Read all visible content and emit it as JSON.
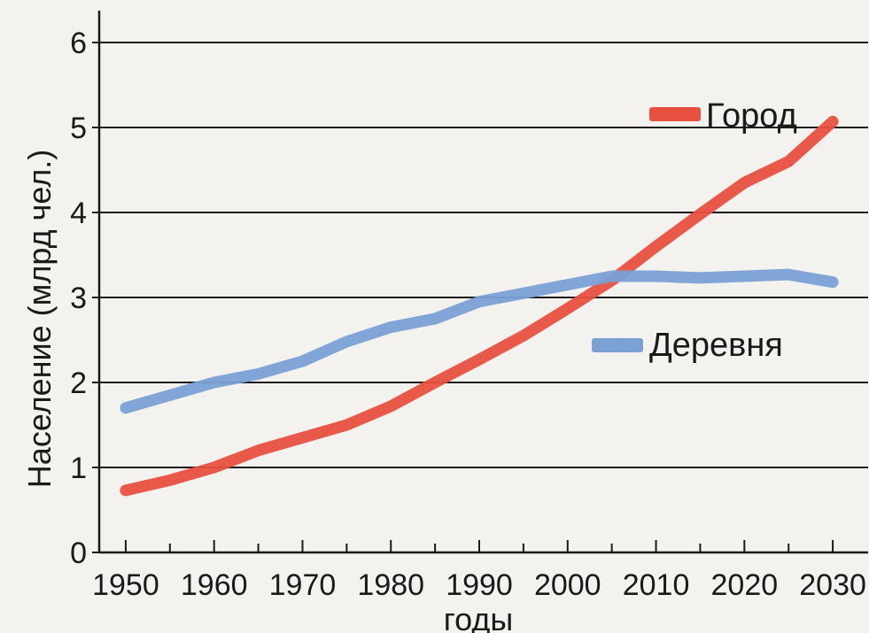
{
  "chart_data": {
    "type": "line",
    "title": "",
    "xlabel": "годы",
    "ylabel": "Население (млрд чел.)",
    "xlim": [
      1947,
      2034
    ],
    "ylim": [
      0,
      6.5
    ],
    "x_ticks": [
      "1950",
      "1960",
      "1970",
      "1980",
      "1990",
      "2000",
      "2010",
      "2020",
      "2030"
    ],
    "y_ticks": [
      "0",
      "1",
      "2",
      "3",
      "4",
      "5",
      "6"
    ],
    "grid": true,
    "legend_position": "inline",
    "series": [
      {
        "name": "Город",
        "color": "#e8503f",
        "x": [
          1950,
          1955,
          1960,
          1965,
          1970,
          1975,
          1980,
          1985,
          1990,
          1995,
          2000,
          2005,
          2010,
          2015,
          2020,
          2025,
          2030
        ],
        "y": [
          0.73,
          0.85,
          1.0,
          1.2,
          1.35,
          1.5,
          1.72,
          2.0,
          2.27,
          2.55,
          2.87,
          3.2,
          3.6,
          3.98,
          4.35,
          4.6,
          5.07
        ]
      },
      {
        "name": "Деревня",
        "color": "#7aa0d4",
        "x": [
          1950,
          1955,
          1960,
          1965,
          1970,
          1975,
          1980,
          1985,
          1990,
          1995,
          2000,
          2005,
          2010,
          2015,
          2020,
          2025,
          2030
        ],
        "y": [
          1.7,
          1.85,
          2.0,
          2.1,
          2.25,
          2.48,
          2.65,
          2.75,
          2.95,
          3.05,
          3.15,
          3.25,
          3.25,
          3.23,
          3.25,
          3.27,
          3.18
        ]
      }
    ]
  }
}
